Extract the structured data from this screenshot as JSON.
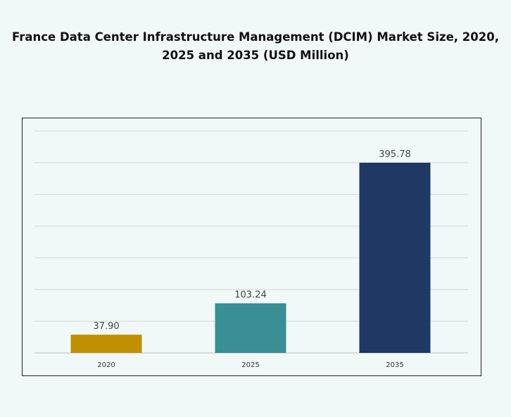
{
  "chart_data": {
    "type": "bar",
    "title_line1": "France Data Center Infrastructure  Management (DCIM) Market Size, 2020,",
    "title_line2": "2025 and 2035 (USD Million)",
    "categories": [
      "2020",
      "2025",
      "2035"
    ],
    "values": [
      37.9,
      103.24,
      395.78
    ],
    "value_labels": [
      "37.90",
      "103.24",
      "395.78"
    ],
    "colors": [
      "#BF8F00",
      "#3A8E96",
      "#1F3864"
    ],
    "xlabel": "",
    "ylabel": "",
    "y_axis_visible": false,
    "grid": true,
    "legend": "none"
  }
}
